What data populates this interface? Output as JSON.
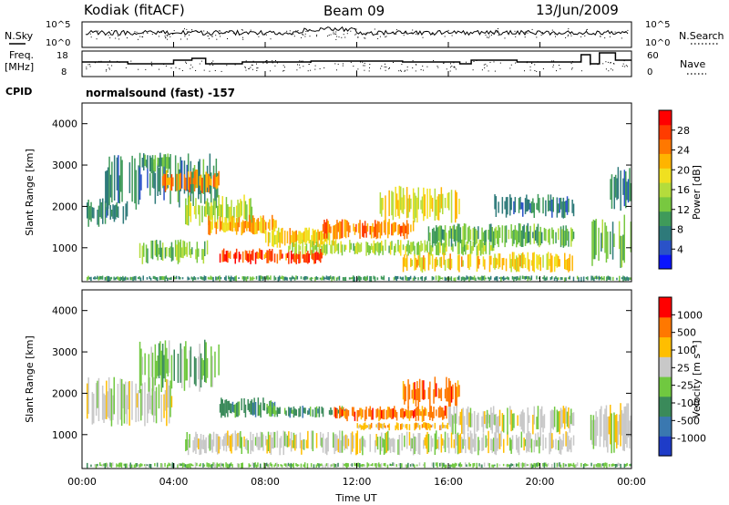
{
  "header": {
    "station": "Kodiak (fitACF)",
    "beam": "Beam 09",
    "date": "13/Jun/2009"
  },
  "side_labels": {
    "nsky": "N.Sky",
    "freq_line1": "Freq.",
    "freq_line2": "[MHz]",
    "cpid": "CPID",
    "nsearch": "N.Search",
    "nave": "Nave"
  },
  "mode_text": "normalsound (fast) -157",
  "nsky_axis": {
    "ticks": [
      "10^5",
      "10^0"
    ]
  },
  "freq_axis": {
    "ticks": [
      "18",
      "8"
    ]
  },
  "nave_axis": {
    "ticks": [
      "60",
      "0"
    ]
  },
  "range_axis": {
    "label": "Slant Range [km]",
    "ticks": [
      "1000",
      "2000",
      "3000",
      "4000"
    ]
  },
  "time_axis": {
    "label": "Time UT",
    "ticks": [
      "00:00",
      "04:00",
      "08:00",
      "12:00",
      "16:00",
      "20:00",
      "00:00"
    ]
  },
  "chart_data": [
    {
      "type": "heatmap",
      "name": "power",
      "xlabel": "Time UT",
      "ylabel": "Slant Range [km]",
      "xlim": [
        0,
        24
      ],
      "ylim": [
        180,
        4500
      ],
      "colorbar": {
        "label": "Power [dB]",
        "tick_labels": [
          "4",
          "8",
          "12",
          "16",
          "20",
          "24",
          "28"
        ],
        "colors": [
          "#0a14ff",
          "#2a52c8",
          "#2e7a7a",
          "#3f9a5a",
          "#78c840",
          "#b4dc3c",
          "#f0e020",
          "#ffb400",
          "#ff7800",
          "#ff3c00",
          "#ff0000"
        ]
      },
      "bands": [
        {
          "t0": 0.2,
          "t1": 24.0,
          "r0": 190,
          "r1": 330,
          "v": 10
        },
        {
          "t0": 0.2,
          "t1": 2.0,
          "r0": 1500,
          "r1": 2200,
          "v": 8
        },
        {
          "t0": 1.0,
          "t1": 6.0,
          "r0": 1900,
          "r1": 3300,
          "v": 9
        },
        {
          "t0": 2.5,
          "t1": 4.0,
          "r0": 2800,
          "r1": 3300,
          "v": 11
        },
        {
          "t0": 3.5,
          "t1": 6.0,
          "r0": 2300,
          "r1": 2900,
          "v": 24
        },
        {
          "t0": 2.5,
          "t1": 5.5,
          "r0": 600,
          "r1": 1200,
          "v": 14
        },
        {
          "t0": 4.5,
          "t1": 7.5,
          "r0": 1500,
          "r1": 2300,
          "v": 16
        },
        {
          "t0": 5.5,
          "t1": 8.5,
          "r0": 1300,
          "r1": 1800,
          "v": 22
        },
        {
          "t0": 6.0,
          "t1": 10.5,
          "r0": 600,
          "r1": 1000,
          "v": 26
        },
        {
          "t0": 8.0,
          "t1": 11.0,
          "r0": 1000,
          "r1": 1500,
          "v": 20
        },
        {
          "t0": 10.5,
          "t1": 14.5,
          "r0": 1200,
          "r1": 1700,
          "v": 25
        },
        {
          "t0": 13.0,
          "t1": 16.5,
          "r0": 1600,
          "r1": 2500,
          "v": 18
        },
        {
          "t0": 9.0,
          "t1": 18.0,
          "r0": 800,
          "r1": 1200,
          "v": 15
        },
        {
          "t0": 14.0,
          "t1": 21.5,
          "r0": 400,
          "r1": 900,
          "v": 20
        },
        {
          "t0": 15.0,
          "t1": 21.5,
          "r0": 1000,
          "r1": 1600,
          "v": 12
        },
        {
          "t0": 18.0,
          "t1": 21.5,
          "r0": 1700,
          "r1": 2300,
          "v": 8
        },
        {
          "t0": 22.2,
          "t1": 24.0,
          "r0": 500,
          "r1": 1800,
          "v": 12
        },
        {
          "t0": 23.0,
          "t1": 24.0,
          "r0": 1800,
          "r1": 3000,
          "v": 8
        }
      ]
    },
    {
      "type": "heatmap",
      "name": "velocity",
      "xlabel": "Time UT",
      "ylabel": "Slant Range [km]",
      "xlim": [
        0,
        24
      ],
      "ylim": [
        180,
        4500
      ],
      "colorbar": {
        "label": "Velocity [m s⁻¹]",
        "tick_labels": [
          "1000",
          "500",
          "100",
          "25",
          "-25",
          "-100",
          "-500",
          "-1000"
        ],
        "colors": [
          "#1e3cc8",
          "#3a78b0",
          "#3a8a5a",
          "#70c840",
          "#c8c8c8",
          "#ffbe00",
          "#ff7800",
          "#ff0000"
        ]
      },
      "bands": [
        {
          "t0": 0.2,
          "t1": 24.0,
          "r0": 190,
          "r1": 330,
          "v": 3
        },
        {
          "t0": 0.2,
          "t1": 4.0,
          "r0": 1200,
          "r1": 2400,
          "v": 4
        },
        {
          "t0": 2.5,
          "t1": 6.0,
          "r0": 2000,
          "r1": 3300,
          "v": 3
        },
        {
          "t0": 6.0,
          "t1": 8.5,
          "r0": 1400,
          "r1": 1900,
          "v": 2
        },
        {
          "t0": 8.0,
          "t1": 11.5,
          "r0": 1400,
          "r1": 1700,
          "v": 2
        },
        {
          "t0": 11.0,
          "t1": 16.0,
          "r0": 1300,
          "r1": 1700,
          "v": 6
        },
        {
          "t0": 14.0,
          "t1": 16.5,
          "r0": 1600,
          "r1": 2400,
          "v": 6
        },
        {
          "t0": 12.0,
          "t1": 16.0,
          "r0": 1100,
          "r1": 1300,
          "v": 5
        },
        {
          "t0": 4.5,
          "t1": 21.5,
          "r0": 500,
          "r1": 1100,
          "v": 4
        },
        {
          "t0": 16.0,
          "t1": 21.5,
          "r0": 1000,
          "r1": 1700,
          "v": 4
        },
        {
          "t0": 22.2,
          "t1": 24.0,
          "r0": 500,
          "r1": 1800,
          "v": 4
        }
      ]
    }
  ]
}
